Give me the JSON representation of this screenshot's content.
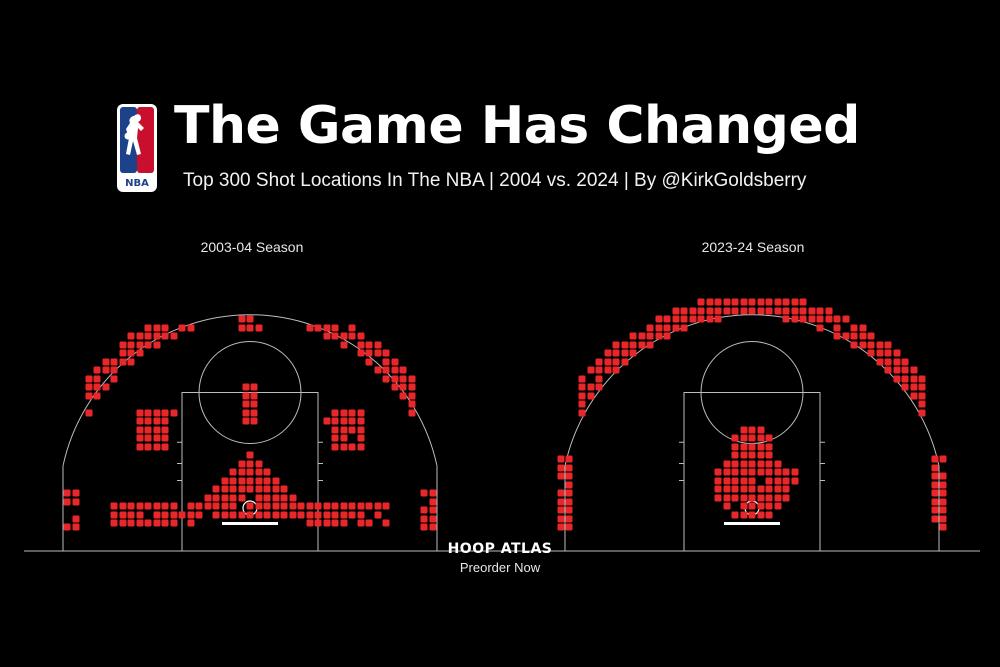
{
  "header": {
    "title": "The Game Has Changed",
    "subtitle": "Top 300 Shot Locations In The NBA | 2004 vs. 2024 | By @KirkGoldsberry",
    "logo_text": "NBA"
  },
  "footer": {
    "brand": "HOOP ATLAS",
    "cta": "Preorder Now"
  },
  "colors": {
    "background": "#000000",
    "shot": "#e8272a",
    "court_lines": "#bdbdbd",
    "logo_blue": "#1d428a",
    "logo_red": "#c8102e"
  },
  "chart_data": [
    {
      "type": "heatmap",
      "title": "2003-04 Season",
      "grid": "court-squares",
      "units": "feet from hoop (x lateral, y toward half court)",
      "clusters": [
        {
          "name": "restricted-area-and-paint",
          "x_range": [
            -7,
            7
          ],
          "y_range": [
            -1,
            6
          ],
          "shape": "triangle"
        },
        {
          "name": "baseline-wing-left",
          "x_range": [
            -16,
            -7
          ],
          "y_range": [
            -2,
            0.5
          ]
        },
        {
          "name": "baseline-wing-right",
          "x_range": [
            7,
            16
          ],
          "y_range": [
            -2,
            0.5
          ]
        },
        {
          "name": "left-corner-three",
          "x_range": [
            -21.5,
            -20.5
          ],
          "y_range": [
            -2.5,
            1.5
          ]
        },
        {
          "name": "right-corner-three",
          "x_range": [
            20.5,
            21.5
          ],
          "y_range": [
            -2.5,
            1.5
          ]
        },
        {
          "name": "left-elbow-midrange",
          "x_range": [
            -13,
            -10
          ],
          "y_range": [
            7,
            11
          ]
        },
        {
          "name": "right-elbow-midrange",
          "x_range": [
            10,
            13
          ],
          "y_range": [
            7,
            11
          ]
        },
        {
          "name": "top-key-line",
          "x_range": [
            -0.5,
            0.5
          ],
          "y_range": [
            10,
            14
          ]
        },
        {
          "name": "above-break-three-left",
          "x_range": [
            -19,
            -7
          ],
          "y_range": [
            10,
            21
          ]
        },
        {
          "name": "above-break-three-right",
          "x_range": [
            7,
            19
          ],
          "y_range": [
            10,
            21
          ]
        },
        {
          "name": "top-of-key-three",
          "x_range": [
            -1,
            1
          ],
          "y_range": [
            21,
            22
          ]
        }
      ]
    },
    {
      "type": "heatmap",
      "title": "2023-24 Season",
      "grid": "court-squares",
      "units": "feet from hoop (x lateral, y toward half court)",
      "clusters": [
        {
          "name": "paint-and-short-midrange",
          "x_range": [
            -5,
            5
          ],
          "y_range": [
            -1,
            9
          ],
          "shape": "blob"
        },
        {
          "name": "left-corner-three",
          "x_range": [
            -22.5,
            -21.5
          ],
          "y_range": [
            -2.5,
            6
          ]
        },
        {
          "name": "right-corner-three",
          "x_range": [
            21.5,
            22.5
          ],
          "y_range": [
            -2.5,
            6
          ]
        },
        {
          "name": "above-break-three-arc",
          "x_range": [
            -20,
            20
          ],
          "y_range": [
            7,
            26
          ],
          "shape": "arc"
        }
      ]
    }
  ]
}
